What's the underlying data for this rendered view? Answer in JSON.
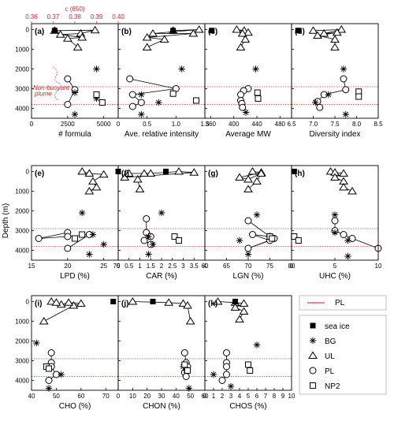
{
  "y_axis": {
    "label": "Depth (m)",
    "ticks": [
      0,
      1000,
      2000,
      3000,
      4000
    ],
    "range": [
      4500,
      -300
    ]
  },
  "pl_lines": [
    2900,
    3800
  ],
  "colors": {
    "pl_line": "#e04040",
    "marker": "#000000"
  },
  "legend_top": {
    "label": "PL"
  },
  "legend": [
    {
      "key": "seaice",
      "label": "sea ice"
    },
    {
      "key": "BG",
      "label": "BG"
    },
    {
      "key": "UL",
      "label": "UL"
    },
    {
      "key": "PL",
      "label": "PL"
    },
    {
      "key": "NP2",
      "label": "NP2"
    }
  ],
  "panel_a_top_axis": {
    "label": "c (650)",
    "ticks": [
      "0.36",
      "0.37",
      "0.38",
      "0.39",
      "0.40"
    ],
    "range": [
      0.36,
      0.4
    ]
  },
  "annotation": {
    "text_1": "Non-buoyant",
    "text_2": "plume"
  },
  "chart_data": [
    {
      "id": "a",
      "label": "(a)",
      "type": "scatter",
      "xlabel": "# formula",
      "xlim": [
        0,
        6000
      ],
      "xticks": [
        0,
        2500,
        5000
      ],
      "xtick_labels": [
        "0",
        "2500",
        "5000"
      ],
      "seaice": [
        [
          1600,
          50
        ]
      ],
      "UL": [
        [
          1600,
          50
        ],
        [
          4400,
          30
        ],
        [
          3400,
          200
        ],
        [
          2000,
          250
        ],
        [
          3500,
          400
        ],
        [
          2500,
          450
        ],
        [
          3200,
          900
        ]
      ],
      "BG": [
        [
          4500,
          2000
        ],
        [
          3000,
          3200
        ],
        [
          4500,
          3500
        ],
        [
          3000,
          4300
        ]
      ],
      "PL": [
        [
          2500,
          2500
        ],
        [
          3000,
          3050
        ],
        [
          2500,
          3800
        ]
      ],
      "NP2": [
        [
          4500,
          3300
        ],
        [
          4900,
          3700
        ]
      ]
    },
    {
      "id": "b",
      "label": "(b)",
      "type": "scatter",
      "xlabel": "Ave. relative intensity",
      "xlim": [
        0,
        1.5
      ],
      "xticks": [
        0,
        0.5,
        1,
        1.5
      ],
      "xtick_labels": [
        "0",
        "0.5",
        "1.0",
        "1.5"
      ],
      "seaice": [
        [
          0.95,
          50
        ]
      ],
      "UL": [
        [
          0.95,
          50
        ],
        [
          1.4,
          0
        ],
        [
          0.6,
          200
        ],
        [
          1.3,
          200
        ],
        [
          0.5,
          400
        ],
        [
          0.8,
          500
        ],
        [
          0.5,
          900
        ]
      ],
      "BG": [
        [
          1.1,
          2000
        ],
        [
          0.4,
          3300
        ],
        [
          0.7,
          3700
        ],
        [
          0.4,
          4300
        ]
      ],
      "PL": [
        [
          0.2,
          2500
        ],
        [
          1.0,
          3000
        ],
        [
          0.25,
          3300
        ],
        [
          0.4,
          3700
        ],
        [
          0.25,
          3900
        ]
      ],
      "NP2": [
        [
          0.95,
          3250
        ],
        [
          1.35,
          3600
        ]
      ]
    },
    {
      "id": "c",
      "label": "(c)",
      "type": "scatter",
      "xlabel": "Average MW",
      "xlim": [
        350,
        500
      ],
      "xticks": [
        360,
        400,
        440,
        480
      ],
      "xtick_labels": [
        "360",
        "400",
        "440",
        "480"
      ],
      "seaice": [
        [
          362,
          50
        ]
      ],
      "UL": [
        [
          418,
          50
        ],
        [
          405,
          0
        ],
        [
          425,
          150
        ],
        [
          415,
          200
        ],
        [
          420,
          500
        ],
        [
          412,
          900
        ]
      ],
      "BG": [
        [
          438,
          2000
        ],
        [
          421,
          4200
        ]
      ],
      "PL": [
        [
          425,
          3000
        ],
        [
          417,
          3100
        ],
        [
          412,
          3300
        ],
        [
          412,
          3600
        ],
        [
          414,
          3750
        ],
        [
          415,
          3950
        ]
      ],
      "NP2": [
        [
          441,
          3200
        ],
        [
          442,
          3500
        ]
      ]
    },
    {
      "id": "d",
      "label": "(d)",
      "type": "scatter",
      "xlabel": "Diversity index",
      "xlim": [
        6.5,
        8.5
      ],
      "xticks": [
        6.5,
        7.0,
        7.5,
        8.0,
        8.5
      ],
      "xtick_labels": [
        "6.5",
        "7.0",
        "7.5",
        "8.0",
        "8.5"
      ],
      "seaice": [
        [
          6.65,
          50
        ]
      ],
      "UL": [
        [
          7.0,
          50
        ],
        [
          7.65,
          0
        ],
        [
          7.25,
          200
        ],
        [
          7.55,
          150
        ],
        [
          7.1,
          300
        ],
        [
          7.5,
          500
        ],
        [
          7.5,
          900
        ]
      ],
      "BG": [
        [
          7.7,
          2000
        ],
        [
          7.35,
          3300
        ],
        [
          7.05,
          3700
        ],
        [
          7.75,
          4300
        ]
      ],
      "PL": [
        [
          7.7,
          2500
        ],
        [
          7.75,
          3050
        ],
        [
          7.25,
          3300
        ],
        [
          7.1,
          3650
        ],
        [
          7.15,
          3950
        ]
      ],
      "NP2": [
        [
          8.05,
          3150
        ],
        [
          8.05,
          3400
        ]
      ]
    },
    {
      "id": "e",
      "label": "(e)",
      "type": "scatter",
      "xlabel": "LPD (%)",
      "xlim": [
        15,
        27
      ],
      "xticks": [
        15,
        20,
        25
      ],
      "xtick_labels": [
        "15",
        "20",
        "25"
      ],
      "xtick_extra": "75",
      "seaice": [
        [
          27,
          0
        ]
      ],
      "UL": [
        [
          22,
          0
        ],
        [
          23,
          100
        ],
        [
          25,
          150
        ],
        [
          23.5,
          500
        ],
        [
          24,
          800
        ],
        [
          23,
          1000
        ]
      ],
      "BG": [
        [
          22,
          2100
        ],
        [
          23.5,
          3200
        ],
        [
          25,
          3700
        ],
        [
          23,
          4200
        ]
      ],
      "PL": [
        [
          20,
          3100
        ],
        [
          16,
          3400
        ],
        [
          20,
          3300
        ],
        [
          23,
          3200
        ],
        [
          20,
          3900
        ]
      ],
      "NP2": [
        [
          22,
          3200
        ],
        [
          21,
          3400
        ]
      ]
    },
    {
      "id": "f",
      "label": "(f)",
      "type": "scatter",
      "xlabel": "CAR (%)",
      "xlim": [
        0,
        4
      ],
      "xticks": [
        0,
        0.5,
        1,
        1.5,
        2,
        2.5,
        3,
        3.5,
        4
      ],
      "xtick_labels": [
        "0",
        "0.5",
        "1",
        "1.5",
        "2",
        "2.5",
        "3",
        "3.5",
        "4"
      ],
      "seaice": [
        [
          2.2,
          0
        ]
      ],
      "UL": [
        [
          0.3,
          300
        ],
        [
          3.5,
          50
        ],
        [
          2.8,
          0
        ],
        [
          1.5,
          100
        ],
        [
          0.5,
          100
        ],
        [
          1.2,
          100
        ],
        [
          0.9,
          400
        ],
        [
          1.0,
          900
        ]
      ],
      "BG": [
        [
          2.0,
          2100
        ],
        [
          1.4,
          3300
        ],
        [
          1.6,
          3700
        ],
        [
          1.4,
          4200
        ]
      ],
      "PL": [
        [
          1.3,
          2400
        ],
        [
          1.3,
          3100
        ],
        [
          1.5,
          3300
        ],
        [
          1.2,
          3500
        ],
        [
          1.5,
          3700
        ]
      ],
      "NP2": [
        [
          2.6,
          3300
        ],
        [
          2.8,
          3500
        ]
      ]
    },
    {
      "id": "g",
      "label": "(g)",
      "type": "scatter",
      "xlabel": "LGN (%)",
      "xlim": [
        60,
        80
      ],
      "xticks": [
        60,
        65,
        70,
        75,
        80
      ],
      "xtick_labels": [
        "60",
        "65",
        "70",
        "75",
        "80"
      ],
      "seaice": [],
      "UL": [
        [
          71,
          0
        ],
        [
          73,
          50
        ],
        [
          68,
          300
        ],
        [
          70,
          400
        ],
        [
          73,
          100
        ],
        [
          72,
          500
        ],
        [
          70,
          900
        ]
      ],
      "BG": [
        [
          72,
          2200
        ],
        [
          68,
          3500
        ],
        [
          70,
          4200
        ]
      ],
      "PL": [
        [
          70,
          2500
        ],
        [
          75,
          3300
        ],
        [
          71,
          3200
        ],
        [
          75,
          3500
        ],
        [
          70,
          3900
        ],
        [
          76,
          3400
        ]
      ],
      "NP2": [
        [
          75,
          3300
        ],
        [
          75.5,
          3400
        ]
      ]
    },
    {
      "id": "h",
      "label": "(h)",
      "type": "scatter",
      "xlabel": "UHC (%)",
      "xlim": [
        0,
        10
      ],
      "xticks": [
        0,
        5,
        10
      ],
      "xtick_labels": [
        "0",
        "5",
        "10"
      ],
      "seaice": [
        [
          0.3,
          0
        ]
      ],
      "UL": [
        [
          4.5,
          0
        ],
        [
          5,
          50
        ],
        [
          6,
          100
        ],
        [
          5,
          300
        ],
        [
          6,
          500
        ],
        [
          6,
          800
        ],
        [
          7,
          1000
        ]
      ],
      "BG": [
        [
          5,
          2200
        ],
        [
          5,
          3100
        ],
        [
          6.5,
          3500
        ],
        [
          6.5,
          4300
        ]
      ],
      "PL": [
        [
          5,
          2500
        ],
        [
          5,
          3000
        ],
        [
          6,
          3200
        ],
        [
          7,
          3400
        ],
        [
          10,
          3900
        ]
      ],
      "NP2": [
        [
          0.3,
          3300
        ],
        [
          0.8,
          3500
        ]
      ]
    },
    {
      "id": "i",
      "label": "(i)",
      "type": "scatter",
      "xlabel": "CHO (%)",
      "xlim": [
        40,
        75
      ],
      "xticks": [
        40,
        50,
        60,
        70
      ],
      "xtick_labels": [
        "40",
        "50",
        "60",
        "70"
      ],
      "seaice": [
        [
          73,
          0
        ]
      ],
      "UL": [
        [
          45,
          1000
        ],
        [
          57,
          200
        ],
        [
          60,
          100
        ],
        [
          55,
          50
        ],
        [
          52,
          150
        ],
        [
          48,
          0
        ],
        [
          50,
          50
        ]
      ],
      "BG": [
        [
          42,
          2100
        ],
        [
          52,
          3700
        ],
        [
          47,
          4400
        ]
      ],
      "PL": [
        [
          48,
          2600
        ],
        [
          48,
          3100
        ],
        [
          48,
          3300
        ],
        [
          50,
          3700
        ],
        [
          47,
          4000
        ]
      ],
      "NP2": [
        [
          46,
          3300
        ],
        [
          47,
          3400
        ]
      ]
    },
    {
      "id": "j",
      "label": "(j)",
      "type": "scatter",
      "xlabel": "CHON (%)",
      "xlim": [
        0,
        60
      ],
      "xticks": [
        0,
        10,
        20,
        30,
        40,
        50,
        60
      ],
      "xtick_labels": [
        "0",
        "10",
        "20",
        "30",
        "40",
        "50",
        "60"
      ],
      "seaice": [
        [
          24,
          0
        ]
      ],
      "UL": [
        [
          10,
          0
        ],
        [
          35,
          50
        ],
        [
          45,
          100
        ],
        [
          48,
          200
        ],
        [
          50,
          1000
        ]
      ],
      "BG": [
        [
          45,
          3300
        ],
        [
          47,
          3500
        ],
        [
          49,
          4400
        ]
      ],
      "PL": [
        [
          46,
          2600
        ],
        [
          47,
          3100
        ],
        [
          48,
          3300
        ],
        [
          46,
          3600
        ],
        [
          47,
          3800
        ]
      ],
      "NP2": [
        [
          46,
          3200
        ],
        [
          48,
          3500
        ]
      ]
    },
    {
      "id": "k",
      "label": "(k)",
      "type": "scatter",
      "xlabel": "CHOS (%)",
      "xlim": [
        0,
        10
      ],
      "xticks": [
        0,
        1,
        2,
        3,
        4,
        5,
        6,
        7,
        8,
        9,
        10
      ],
      "xtick_labels": [
        "0",
        "1",
        "2",
        "3",
        "4",
        "5",
        "6",
        "7",
        "8",
        "9",
        "10"
      ],
      "seaice": [
        [
          3.5,
          0
        ]
      ],
      "UL": [
        [
          1.5,
          0
        ],
        [
          3.5,
          50
        ],
        [
          4.5,
          100
        ],
        [
          3.5,
          300
        ],
        [
          4.5,
          500
        ],
        [
          4,
          900
        ]
      ],
      "BG": [
        [
          6,
          2200
        ],
        [
          1,
          3700
        ],
        [
          3,
          4300
        ]
      ],
      "PL": [
        [
          2.5,
          2600
        ],
        [
          2.5,
          3100
        ],
        [
          2.5,
          3300
        ],
        [
          2.5,
          3700
        ],
        [
          2.0,
          4000
        ]
      ],
      "NP2": [
        [
          5,
          3200
        ],
        [
          5.2,
          3500
        ]
      ]
    }
  ]
}
